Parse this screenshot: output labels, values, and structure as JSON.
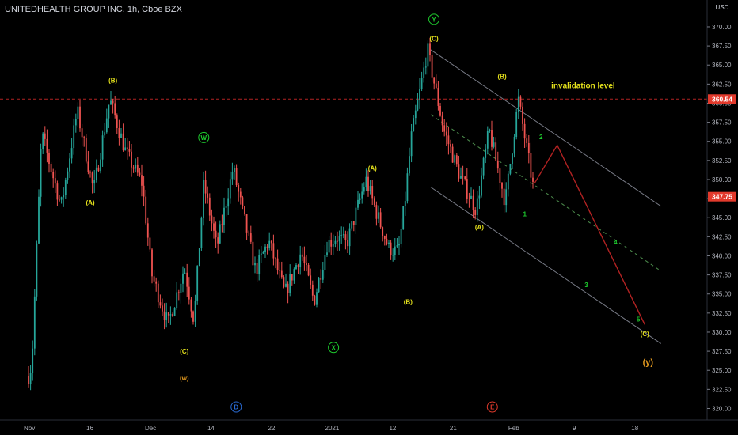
{
  "header": {
    "title": "UNITEDHEALTH GROUP INC, 1h, Cboe BZX",
    "currency": "USD"
  },
  "price_tags": [
    {
      "label": "360.54",
      "color": "#e23a2c"
    },
    {
      "label": "347.75",
      "color": "#e23a2c"
    }
  ],
  "chart_data": {
    "type": "candlestick",
    "symbol": "UNITEDHEALTH GROUP INC",
    "interval": "1h",
    "exchange": "Cboe BZX",
    "ylim": [
      319.5,
      371.5
    ],
    "y_ticks": [
      "370.00",
      "367.50",
      "365.00",
      "362.50",
      "360.00",
      "357.50",
      "355.00",
      "352.50",
      "350.00",
      "347.50",
      "345.00",
      "342.50",
      "340.00",
      "337.50",
      "335.00",
      "332.50",
      "330.00",
      "327.50",
      "325.00",
      "322.50",
      "320.00"
    ],
    "x_tick_labels": [
      "Nov",
      "16",
      "Dec",
      "14",
      "22",
      "2021",
      "12",
      "21",
      "Feb",
      "9",
      "18"
    ],
    "grid": false,
    "price_path": [
      {
        "x": 0.0,
        "price": 321.0
      },
      {
        "x": 0.3,
        "price": 326.0
      },
      {
        "x": 0.6,
        "price": 356.0
      },
      {
        "x": 1.2,
        "price": 346.5
      },
      {
        "x": 1.7,
        "price": 359.0
      },
      {
        "x": 2.2,
        "price": 348.5
      },
      {
        "x": 2.7,
        "price": 360.5
      },
      {
        "x": 3.2,
        "price": 353.5
      },
      {
        "x": 3.7,
        "price": 349.5
      },
      {
        "x": 4.0,
        "price": 337.5
      },
      {
        "x": 4.5,
        "price": 331.0
      },
      {
        "x": 5.0,
        "price": 338.5
      },
      {
        "x": 5.3,
        "price": 331.5
      },
      {
        "x": 5.6,
        "price": 349.5
      },
      {
        "x": 6.0,
        "price": 341.0
      },
      {
        "x": 6.5,
        "price": 351.5
      },
      {
        "x": 7.2,
        "price": 338.0
      },
      {
        "x": 7.6,
        "price": 342.0
      },
      {
        "x": 8.1,
        "price": 335.0
      },
      {
        "x": 8.6,
        "price": 340.5
      },
      {
        "x": 9.0,
        "price": 334.0
      },
      {
        "x": 9.4,
        "price": 341.5
      },
      {
        "x": 9.7,
        "price": 342.5
      },
      {
        "x": 10.0,
        "price": 341.5
      },
      {
        "x": 10.6,
        "price": 350.0
      },
      {
        "x": 10.9,
        "price": 346.0
      },
      {
        "x": 11.3,
        "price": 341.0
      },
      {
        "x": 11.6,
        "price": 340.5
      },
      {
        "x": 11.8,
        "price": 347.0
      },
      {
        "x": 12.0,
        "price": 355.5
      },
      {
        "x": 12.5,
        "price": 367.0
      },
      {
        "x": 13.0,
        "price": 356.5
      },
      {
        "x": 13.5,
        "price": 350.5
      },
      {
        "x": 14.0,
        "price": 346.0
      },
      {
        "x": 14.4,
        "price": 356.5
      },
      {
        "x": 14.9,
        "price": 347.0
      },
      {
        "x": 15.3,
        "price": 360.5
      },
      {
        "x": 15.8,
        "price": 348.0
      }
    ],
    "projection": {
      "color": "#b22222",
      "points": [
        {
          "x": 15.8,
          "price": 349.5
        },
        {
          "x": 16.5,
          "price": 354.5
        },
        {
          "x": 19.2,
          "price": 331.0
        }
      ]
    },
    "horizontal_line": {
      "price": 360.54,
      "color": "#b22222",
      "style": "dashed"
    },
    "channel": {
      "color": "#787b86",
      "upper": [
        {
          "x": 12.6,
          "price": 367.0
        },
        {
          "x": 19.7,
          "price": 346.5
        }
      ],
      "middle": [
        {
          "x": 12.6,
          "price": 358.5
        },
        {
          "x": 19.7,
          "price": 338.0
        }
      ],
      "lower": [
        {
          "x": 12.6,
          "price": 349.0
        },
        {
          "x": 19.7,
          "price": 328.5
        }
      ]
    },
    "annotations": [
      {
        "text": "(B)",
        "x": 2.8,
        "price": 363.0,
        "color": "#e5e21c"
      },
      {
        "text": "(A)",
        "x": 2.1,
        "price": 347.0,
        "color": "#e5e21c"
      },
      {
        "text": "W",
        "x": 5.6,
        "price": 355.5,
        "color": "#1ecb2e",
        "circled": true
      },
      {
        "text": "(C)",
        "x": 5.0,
        "price": 327.5,
        "color": "#e5e21c"
      },
      {
        "text": "(w)",
        "x": 5.0,
        "price": 324.0,
        "color": "#e49a1f"
      },
      {
        "text": "D",
        "x": 6.6,
        "price": 320.2,
        "color": "#2a6cd6",
        "circled": true
      },
      {
        "text": "X",
        "x": 9.6,
        "price": 328.0,
        "color": "#1ecb2e",
        "circled": true
      },
      {
        "text": "(A)",
        "x": 10.8,
        "price": 351.5,
        "color": "#e5e21c"
      },
      {
        "text": "(B)",
        "x": 11.9,
        "price": 334.0,
        "color": "#e5e21c"
      },
      {
        "text": "Y",
        "x": 12.7,
        "price": 371.0,
        "color": "#1ecb2e",
        "circled": true
      },
      {
        "text": "(C)",
        "x": 12.7,
        "price": 368.5,
        "color": "#e5e21c"
      },
      {
        "text": "E",
        "x": 14.5,
        "price": 320.2,
        "color": "#e23a2c",
        "circled": true
      },
      {
        "text": "(A)",
        "x": 14.1,
        "price": 343.8,
        "color": "#e5e21c"
      },
      {
        "text": "(B)",
        "x": 14.8,
        "price": 363.5,
        "color": "#e5e21c"
      },
      {
        "text": "invalidation level",
        "x": 17.3,
        "price": 362.3,
        "color": "#e5e21c",
        "size": 10
      },
      {
        "text": "1",
        "x": 15.5,
        "price": 345.5,
        "color": "#1ecb2e"
      },
      {
        "text": "2",
        "x": 16.0,
        "price": 355.6,
        "color": "#1ecb2e"
      },
      {
        "text": "3",
        "x": 17.4,
        "price": 336.2,
        "color": "#1ecb2e"
      },
      {
        "text": "4",
        "x": 18.3,
        "price": 341.8,
        "color": "#1ecb2e"
      },
      {
        "text": "5",
        "x": 19.0,
        "price": 331.7,
        "color": "#1ecb2e"
      },
      {
        "text": "(C)",
        "x": 19.2,
        "price": 329.8,
        "color": "#e5e21c"
      },
      {
        "text": "(y)",
        "x": 19.3,
        "price": 326.0,
        "color": "#e49a1f",
        "size": 11
      }
    ]
  }
}
